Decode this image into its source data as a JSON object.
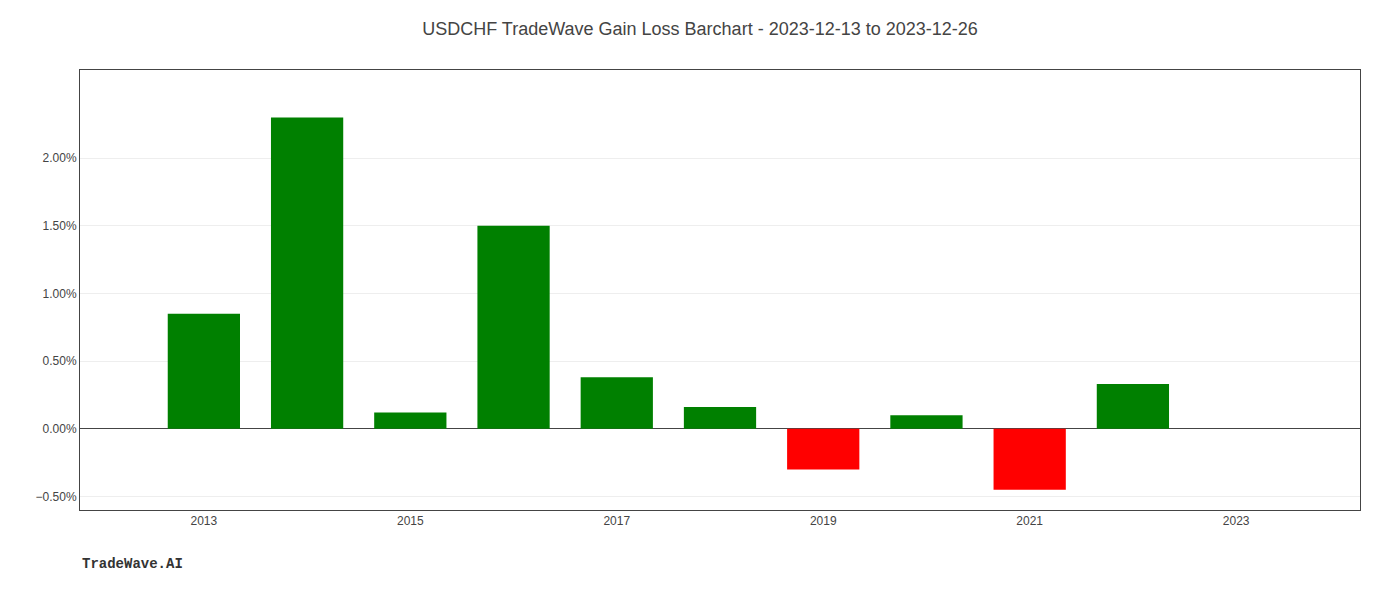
{
  "chart_data": {
    "type": "bar",
    "title": "USDCHF TradeWave Gain Loss Barchart - 2023-12-13 to 2023-12-26",
    "annotations": [
      "TradeWave.AI"
    ],
    "x": [
      2013,
      2014,
      2015,
      2016,
      2017,
      2018,
      2019,
      2020,
      2021,
      2022
    ],
    "values": [
      0.0085,
      0.023,
      0.0012,
      0.015,
      0.0038,
      0.0016,
      -0.003,
      0.001,
      -0.0045,
      0.0033
    ],
    "colors": [
      "#008000",
      "#008000",
      "#008000",
      "#008000",
      "#008000",
      "#008000",
      "#ff0000",
      "#008000",
      "#ff0000",
      "#008000"
    ],
    "xlim": [
      2011.8,
      2024.2
    ],
    "xticks": [
      2013,
      2015,
      2017,
      2019,
      2021,
      2023
    ],
    "ylim": [
      -0.006,
      0.0265
    ],
    "yticks": [
      {
        "value": -0.005,
        "label": "−0.50%"
      },
      {
        "value": 0.0,
        "label": "0.00%"
      },
      {
        "value": 0.005,
        "label": "0.50%"
      },
      {
        "value": 0.01,
        "label": "1.00%"
      },
      {
        "value": 0.015,
        "label": "1.50%"
      },
      {
        "value": 0.02,
        "label": "2.00%"
      }
    ],
    "grid": true
  }
}
